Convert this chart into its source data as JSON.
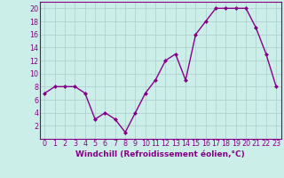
{
  "x": [
    0,
    1,
    2,
    3,
    4,
    5,
    6,
    7,
    8,
    9,
    10,
    11,
    12,
    13,
    14,
    15,
    16,
    17,
    18,
    19,
    20,
    21,
    22,
    23
  ],
  "y": [
    7,
    8,
    8,
    8,
    7,
    3,
    4,
    3,
    1,
    4,
    7,
    9,
    12,
    13,
    9,
    16,
    18,
    20,
    20,
    20,
    20,
    17,
    13,
    8
  ],
  "line_color": "#880088",
  "marker": "D",
  "marker_size": 2.0,
  "bg_color": "#cceee8",
  "grid_color": "#aacccc",
  "xlabel": "Windchill (Refroidissement éolien,°C)",
  "ylim": [
    0,
    21
  ],
  "yticks": [
    2,
    4,
    6,
    8,
    10,
    12,
    14,
    16,
    18,
    20
  ],
  "xtick_labels": [
    "0",
    "1",
    "2",
    "3",
    "4",
    "5",
    "6",
    "7",
    "8",
    "9",
    "10",
    "11",
    "12",
    "13",
    "14",
    "15",
    "16",
    "17",
    "18",
    "19",
    "20",
    "21",
    "22",
    "23"
  ],
  "xlabel_fontsize": 6.5,
  "tick_fontsize": 5.8,
  "linewidth": 1.0
}
